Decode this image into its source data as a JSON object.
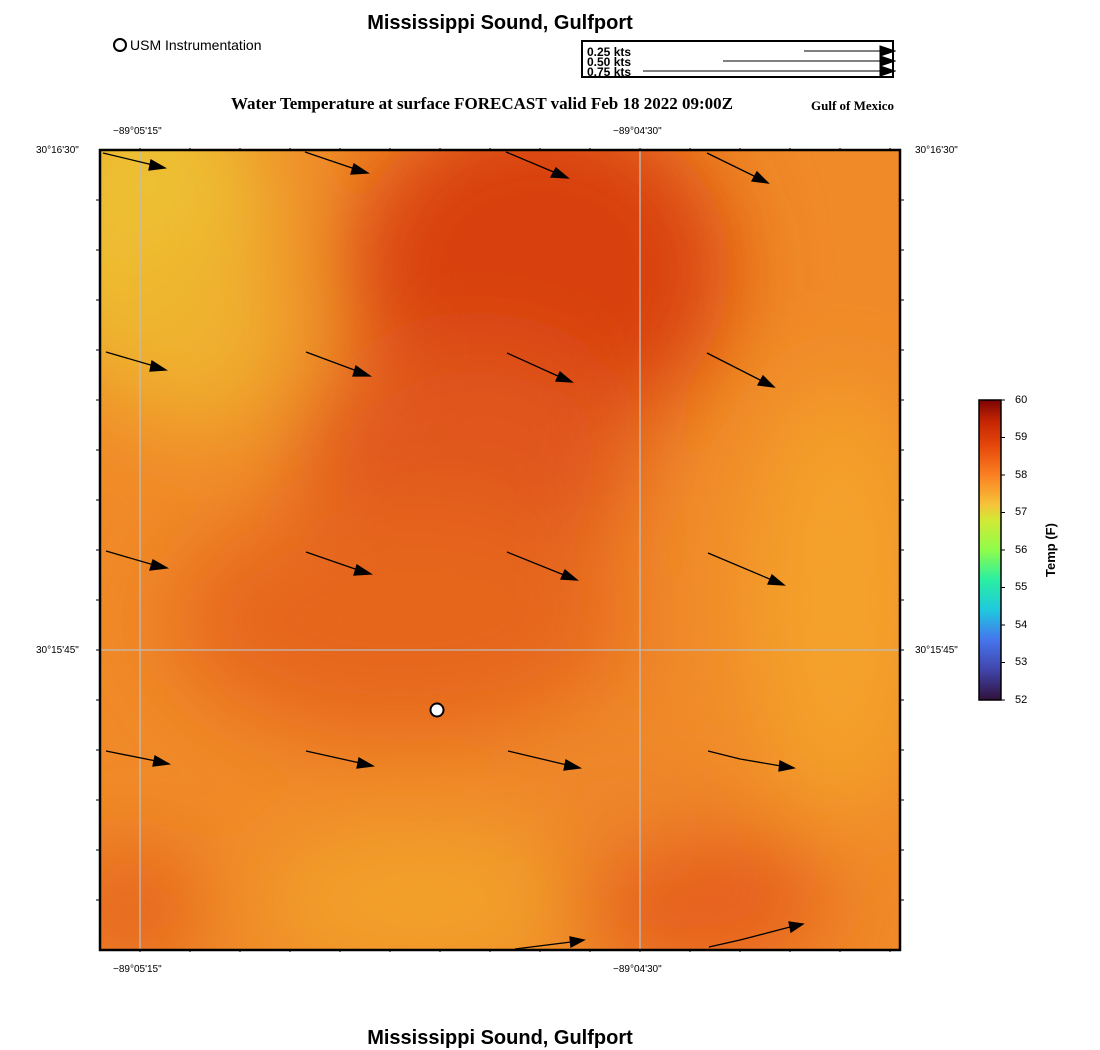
{
  "header": {
    "title": "Mississippi Sound, Gulfport",
    "subtitle": "Water Temperature at surface FORECAST valid Feb 18 2022 09:00Z",
    "region": "Gulf of Mexico"
  },
  "footer": {
    "title": "Mississippi Sound, Gulfport"
  },
  "station_legend": {
    "label": "USM Instrumentation"
  },
  "vector_legend": {
    "entries": [
      "0.25 kts",
      "0.50 kts",
      "0.75 kts"
    ]
  },
  "map": {
    "lon_ticks": [
      "−89°05'15\"",
      "−89°04'30\""
    ],
    "lat_ticks": [
      "30°16'30\"",
      "30°15'45\""
    ]
  },
  "colorbar": {
    "label": "Temp (F)",
    "ticks": [
      "60",
      "59",
      "58",
      "57",
      "56",
      "55",
      "54",
      "53",
      "52"
    ],
    "min": 52,
    "max": 60
  }
}
